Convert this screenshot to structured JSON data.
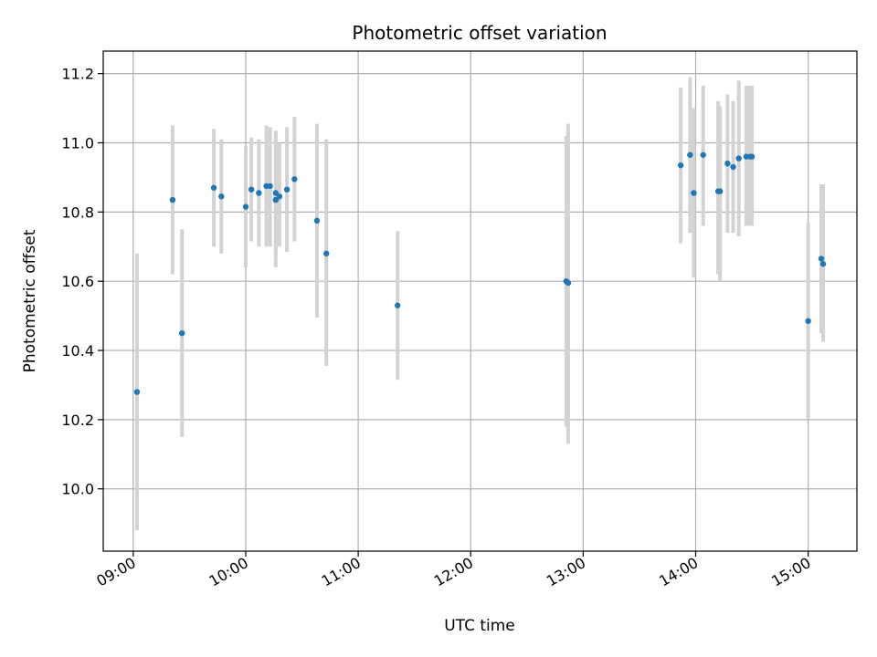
{
  "chart_data": {
    "type": "scatter",
    "title": "Photometric offset variation",
    "xlabel": "UTC time",
    "ylabel": "Photometric offset",
    "x_axis_kind": "time of day (UTC)",
    "xlim": [
      "08:44",
      "15:26"
    ],
    "ylim": [
      9.82,
      11.265
    ],
    "grid": true,
    "x_ticks": [
      "09:00",
      "10:00",
      "11:00",
      "12:00",
      "13:00",
      "14:00",
      "15:00"
    ],
    "y_ticks": [
      10.0,
      10.2,
      10.4,
      10.6,
      10.8,
      11.0,
      11.2
    ],
    "y_tick_labels": [
      "10.0",
      "10.2",
      "10.4",
      "10.6",
      "10.8",
      "11.0",
      "11.2"
    ],
    "colors": {
      "point": "#1f77b4",
      "errorbar": "#d3d3d3",
      "grid": "#b0b0b0"
    },
    "series": [
      {
        "marker": "point",
        "errorbars": "vertical",
        "points": [
          {
            "t": "09:02",
            "y": 10.28,
            "lo": 9.88,
            "hi": 10.68
          },
          {
            "t": "09:21",
            "y": 10.835,
            "lo": 10.62,
            "hi": 11.05
          },
          {
            "t": "09:26",
            "y": 10.45,
            "lo": 10.15,
            "hi": 10.75
          },
          {
            "t": "09:43",
            "y": 10.87,
            "lo": 10.7,
            "hi": 11.04
          },
          {
            "t": "09:47",
            "y": 10.845,
            "lo": 10.68,
            "hi": 11.01
          },
          {
            "t": "10:00",
            "y": 10.815,
            "lo": 10.64,
            "hi": 10.99
          },
          {
            "t": "10:03",
            "y": 10.865,
            "lo": 10.715,
            "hi": 11.015
          },
          {
            "t": "10:07",
            "y": 10.855,
            "lo": 10.7,
            "hi": 11.01
          },
          {
            "t": "10:11",
            "y": 10.875,
            "lo": 10.7,
            "hi": 11.05
          },
          {
            "t": "10:13",
            "y": 10.875,
            "lo": 10.7,
            "hi": 11.045
          },
          {
            "t": "10:16",
            "y": 10.835,
            "lo": 10.64,
            "hi": 11.035
          },
          {
            "t": "10:16",
            "y": 10.855,
            "lo": 10.68,
            "hi": 11.03
          },
          {
            "t": "10:18",
            "y": 10.845,
            "lo": 10.7,
            "hi": 11.0
          },
          {
            "t": "10:22",
            "y": 10.865,
            "lo": 10.685,
            "hi": 11.045
          },
          {
            "t": "10:26",
            "y": 10.895,
            "lo": 10.715,
            "hi": 11.075
          },
          {
            "t": "10:38",
            "y": 10.775,
            "lo": 10.495,
            "hi": 11.055
          },
          {
            "t": "10:43",
            "y": 10.68,
            "lo": 10.355,
            "hi": 11.01
          },
          {
            "t": "11:21",
            "y": 10.53,
            "lo": 10.315,
            "hi": 10.745
          },
          {
            "t": "12:51",
            "y": 10.6,
            "lo": 10.18,
            "hi": 11.02
          },
          {
            "t": "12:52",
            "y": 10.595,
            "lo": 10.13,
            "hi": 11.055
          },
          {
            "t": "13:52",
            "y": 10.935,
            "lo": 10.71,
            "hi": 11.16
          },
          {
            "t": "13:57",
            "y": 10.965,
            "lo": 10.74,
            "hi": 11.19
          },
          {
            "t": "13:59",
            "y": 10.855,
            "lo": 10.61,
            "hi": 11.1
          },
          {
            "t": "14:04",
            "y": 10.965,
            "lo": 10.76,
            "hi": 11.165
          },
          {
            "t": "14:12",
            "y": 10.86,
            "lo": 10.62,
            "hi": 11.12
          },
          {
            "t": "14:13",
            "y": 10.86,
            "lo": 10.6,
            "hi": 11.105
          },
          {
            "t": "14:17",
            "y": 10.94,
            "lo": 10.74,
            "hi": 11.14
          },
          {
            "t": "14:20",
            "y": 10.93,
            "lo": 10.74,
            "hi": 11.12
          },
          {
            "t": "14:23",
            "y": 10.955,
            "lo": 10.73,
            "hi": 11.18
          },
          {
            "t": "14:27",
            "y": 10.96,
            "lo": 10.76,
            "hi": 11.165
          },
          {
            "t": "14:29",
            "y": 10.96,
            "lo": 10.76,
            "hi": 11.165
          },
          {
            "t": "14:30",
            "y": 10.96,
            "lo": 10.76,
            "hi": 11.165
          },
          {
            "t": "15:00",
            "y": 10.485,
            "lo": 10.205,
            "hi": 10.77
          },
          {
            "t": "15:07",
            "y": 10.665,
            "lo": 10.45,
            "hi": 10.88
          },
          {
            "t": "15:08",
            "y": 10.65,
            "lo": 10.425,
            "hi": 10.88
          }
        ]
      }
    ]
  }
}
